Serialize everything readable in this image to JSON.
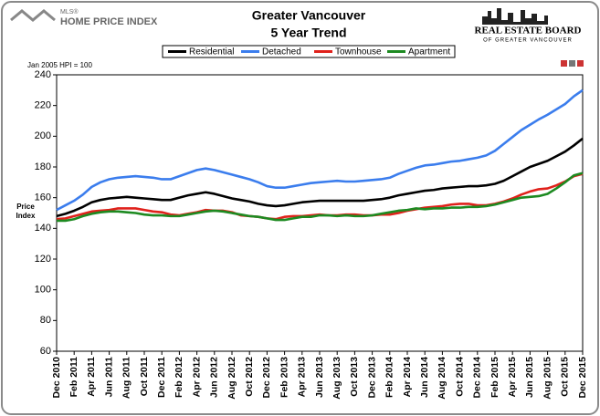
{
  "branding": {
    "mls": "MLS®",
    "hpi": "HOME PRICE INDEX",
    "board": "REAL ESTATE BOARD",
    "board_sub": "OF GREATER VANCOUVER"
  },
  "chart_data": {
    "type": "line",
    "title": "Greater Vancouver",
    "subtitle": "5 Year Trend",
    "note": "Jan 2005 HPI = 100",
    "ylabel": "Price Index",
    "categories": [
      "Dec 2010",
      null,
      "Feb 2011",
      null,
      "Apr 2011",
      null,
      "Jun 2011",
      null,
      "Aug 2011",
      null,
      "Oct 2011",
      null,
      "Dec 2011",
      null,
      "Feb 2012",
      null,
      "Apr 2012",
      null,
      "Jun 2012",
      null,
      "Aug 2012",
      null,
      "Oct 2012",
      null,
      "Dec 2012",
      null,
      "Feb 2013",
      null,
      "Apr 2013",
      null,
      "Jun 2013",
      null,
      "Aug 2013",
      null,
      "Oct 2013",
      null,
      "Dec 2013",
      null,
      "Feb 2014",
      null,
      "Apr 2014",
      null,
      "Jun 2014",
      null,
      "Aug 2014",
      null,
      "Oct 2014",
      null,
      "Dec 2014",
      null,
      "Feb 2015",
      null,
      "Apr 2015",
      null,
      "Jun 2015",
      null,
      "Aug 2015",
      null,
      "Oct 2015",
      null,
      "Dec 2015"
    ],
    "series": [
      {
        "name": "Residential",
        "color": "#000000",
        "values": [
          148,
          149.5,
          151.5,
          154,
          157,
          158.5,
          159.5,
          160,
          160.5,
          160,
          159.5,
          159,
          158.5,
          158.5,
          160,
          161.5,
          162.5,
          163.5,
          162.5,
          161,
          159.5,
          158.5,
          157.5,
          156,
          155,
          154.5,
          155,
          156,
          157,
          157.5,
          158,
          158,
          158,
          158,
          158,
          158,
          158.5,
          159,
          160,
          161.5,
          162.5,
          163.5,
          164.5,
          165,
          166,
          166.5,
          167,
          167.5,
          167.5,
          168,
          169,
          171,
          174,
          177,
          180,
          182,
          184,
          187,
          190,
          194,
          198.5
        ]
      },
      {
        "name": "Detached",
        "color": "#3b7ded",
        "values": [
          152,
          155,
          158,
          162,
          167,
          170,
          172,
          173,
          173.5,
          174,
          173.5,
          173,
          172,
          172,
          174,
          176,
          178,
          179,
          178,
          176.5,
          175,
          173.5,
          172,
          170,
          167.5,
          166.5,
          166.5,
          167.5,
          168.5,
          169.5,
          170,
          170.5,
          171,
          170.5,
          170.5,
          171,
          171.5,
          172,
          173,
          175.5,
          177.5,
          179.5,
          181,
          181.5,
          182.5,
          183.5,
          184,
          185,
          186,
          187.5,
          190.5,
          195,
          199.5,
          204,
          207.5,
          211,
          214,
          217.5,
          221,
          226,
          230
        ]
      },
      {
        "name": "Townhouse",
        "color": "#e0211b",
        "values": [
          146,
          146.5,
          148,
          149.5,
          151,
          151.5,
          152,
          153,
          153,
          153,
          152,
          151,
          150.5,
          149,
          148.5,
          149.5,
          150.5,
          152,
          151.5,
          151.5,
          150.5,
          148.5,
          148,
          147.5,
          146.5,
          146,
          147.5,
          148,
          148,
          148.5,
          149,
          148.5,
          148.5,
          149,
          149,
          148.5,
          148.5,
          149,
          149,
          150,
          151.5,
          152.5,
          153.5,
          154,
          154.5,
          155.5,
          156,
          156,
          155,
          155,
          156,
          157.5,
          159.5,
          162,
          164,
          165.5,
          166,
          168,
          170.5,
          174,
          175.5
        ]
      },
      {
        "name": "Apartment",
        "color": "#1d8a21",
        "values": [
          145,
          145,
          146,
          148,
          149.5,
          150.5,
          151,
          151,
          150.5,
          150,
          149,
          148.5,
          148.5,
          148,
          148,
          149,
          150,
          151,
          151.5,
          151,
          150,
          149,
          148,
          147.5,
          146.5,
          145.5,
          145.5,
          146.5,
          147.5,
          147.5,
          148.5,
          148.5,
          148,
          148.5,
          148,
          148,
          148.5,
          149.5,
          150.5,
          151.5,
          152,
          153,
          152.5,
          153,
          153,
          153.5,
          153.5,
          154,
          154,
          154.5,
          155.5,
          157,
          158.5,
          160,
          160.5,
          161,
          162.5,
          166,
          170,
          174.5,
          176
        ]
      }
    ],
    "ylim": [
      60,
      240
    ],
    "yticks": [
      60,
      80,
      100,
      120,
      140,
      160,
      180,
      200,
      220,
      240
    ],
    "grid": false,
    "legend": "top"
  }
}
